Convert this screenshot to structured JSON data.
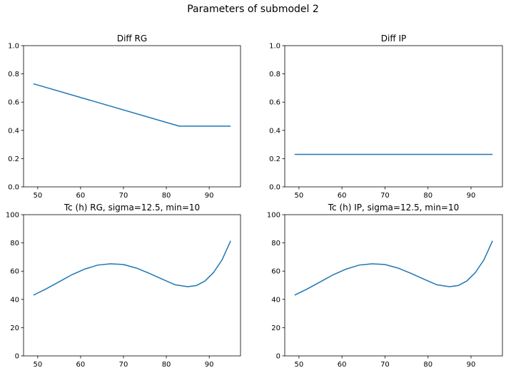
{
  "figure": {
    "suptitle": "Parameters of submodel 2"
  },
  "chart_data": [
    {
      "type": "line",
      "title": "Diff RG",
      "xlabel": "",
      "ylabel": "",
      "xlim": [
        46.7,
        97.3
      ],
      "ylim": [
        0,
        1
      ],
      "xticks": [
        50,
        60,
        70,
        80,
        90
      ],
      "yticks": [
        0.0,
        0.2,
        0.4,
        0.6,
        0.8,
        1.0
      ],
      "ytick_labels": [
        "0.0",
        "0.2",
        "0.4",
        "0.6",
        "0.8",
        "1.0"
      ],
      "series": [
        {
          "x": [
            49,
            83,
            95
          ],
          "y": [
            0.73,
            0.43,
            0.43
          ],
          "color": "#1f77b4"
        }
      ]
    },
    {
      "type": "line",
      "title": "Diff IP",
      "xlabel": "",
      "ylabel": "",
      "xlim": [
        46.7,
        97.3
      ],
      "ylim": [
        0,
        1
      ],
      "xticks": [
        50,
        60,
        70,
        80,
        90
      ],
      "yticks": [
        0.0,
        0.2,
        0.4,
        0.6,
        0.8,
        1.0
      ],
      "ytick_labels": [
        "0.0",
        "0.2",
        "0.4",
        "0.6",
        "0.8",
        "1.0"
      ],
      "series": [
        {
          "x": [
            49,
            95
          ],
          "y": [
            0.23,
            0.23
          ],
          "color": "#1f77b4"
        }
      ]
    },
    {
      "type": "line",
      "title": "Tc (h) RG, sigma=12.5, min=10",
      "xlabel": "",
      "ylabel": "",
      "xlim": [
        46.7,
        97.3
      ],
      "ylim": [
        0,
        100
      ],
      "xticks": [
        50,
        60,
        70,
        80,
        90
      ],
      "yticks": [
        0,
        20,
        40,
        60,
        80,
        100
      ],
      "ytick_labels": [
        "0",
        "20",
        "40",
        "60",
        "80",
        "100"
      ],
      "series": [
        {
          "x": [
            49,
            52,
            55,
            58,
            61,
            64,
            67,
            70,
            73,
            76,
            79,
            82,
            85,
            87,
            89,
            91,
            93,
            95
          ],
          "y": [
            43,
            47.5,
            52.5,
            57.5,
            61.5,
            64.3,
            65.2,
            64.7,
            62.2,
            58.5,
            54.4,
            50.4,
            49.0,
            49.8,
            53.0,
            59.0,
            68.0,
            81.5
          ],
          "color": "#1f77b4"
        }
      ]
    },
    {
      "type": "line",
      "title": "Tc (h) IP, sigma=12.5, min=10",
      "xlabel": "",
      "ylabel": "",
      "xlim": [
        46.7,
        97.3
      ],
      "ylim": [
        0,
        100
      ],
      "xticks": [
        50,
        60,
        70,
        80,
        90
      ],
      "yticks": [
        0,
        20,
        40,
        60,
        80,
        100
      ],
      "ytick_labels": [
        "0",
        "20",
        "40",
        "60",
        "80",
        "100"
      ],
      "series": [
        {
          "x": [
            49,
            52,
            55,
            58,
            61,
            64,
            67,
            70,
            73,
            76,
            79,
            82,
            85,
            87,
            89,
            91,
            93,
            95
          ],
          "y": [
            43,
            47.5,
            52.5,
            57.5,
            61.5,
            64.3,
            65.2,
            64.7,
            62.2,
            58.5,
            54.4,
            50.4,
            49.0,
            49.8,
            53.0,
            59.0,
            68.0,
            81.5
          ],
          "color": "#1f77b4"
        }
      ]
    }
  ]
}
